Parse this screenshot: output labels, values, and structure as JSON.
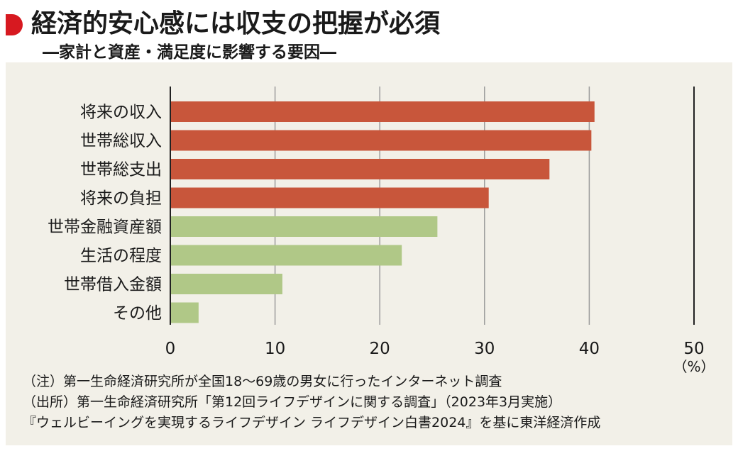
{
  "header": {
    "title": "経済的安心感には収支の把握が必須",
    "subtitle": "―家計と資産・満足度に影響する要因―"
  },
  "chart_data": {
    "type": "bar",
    "orientation": "horizontal",
    "categories": [
      "将来の収入",
      "世帯総収入",
      "世帯総支出",
      "将来の負担",
      "世帯金融資産額",
      "生活の程度",
      "世帯借入金額",
      "その他"
    ],
    "values": [
      40.5,
      40.2,
      36.2,
      30.4,
      25.5,
      22.1,
      10.7,
      2.7
    ],
    "bar_colors": [
      "#c8563b",
      "#c8563b",
      "#c8563b",
      "#c8563b",
      "#b0c887",
      "#b0c887",
      "#b0c887",
      "#b0c887"
    ],
    "xlim": [
      0,
      50
    ],
    "xticks": [
      0,
      10,
      20,
      30,
      40,
      50
    ],
    "unit_label": "（%）",
    "grid": true
  },
  "notes": [
    "（注）第一生命経済研究所が全国18〜69歳の男女に行ったインターネット調査",
    "（出所）第一生命経済研究所「第12回ライフデザインに関する調査」（2023年3月実施）",
    "『ウェルビーイングを実現するライフデザイン ライフデザイン白書2024』を基に東洋経済作成"
  ]
}
